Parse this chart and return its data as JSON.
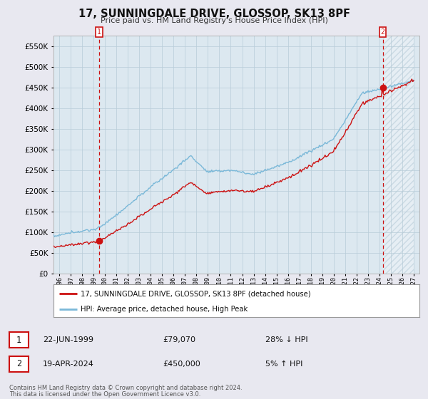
{
  "title": "17, SUNNINGDALE DRIVE, GLOSSOP, SK13 8PF",
  "subtitle": "Price paid vs. HM Land Registry's House Price Index (HPI)",
  "hpi_label": "HPI: Average price, detached house, High Peak",
  "property_label": "17, SUNNINGDALE DRIVE, GLOSSOP, SK13 8PF (detached house)",
  "sale1_date": "22-JUN-1999",
  "sale1_price": 79070,
  "sale1_year": 1999.47,
  "sale1_rel": "28% ↓ HPI",
  "sale2_date": "19-APR-2024",
  "sale2_price": 450000,
  "sale2_year": 2024.29,
  "sale2_rel": "5% ↑ HPI",
  "footnote1": "Contains HM Land Registry data © Crown copyright and database right 2024.",
  "footnote2": "This data is licensed under the Open Government Licence v3.0.",
  "ylim": [
    0,
    575000
  ],
  "yticks": [
    0,
    50000,
    100000,
    150000,
    200000,
    250000,
    300000,
    350000,
    400000,
    450000,
    500000,
    550000
  ],
  "xlim_start": 1995.5,
  "xlim_end": 2027.5,
  "hpi_color": "#7ab8d8",
  "property_color": "#cc1111",
  "background_color": "#e8e8f0",
  "plot_bg_color": "#dce8f0",
  "grid_color": "#b8ccd8",
  "hatch_color": "#b8ccd8"
}
